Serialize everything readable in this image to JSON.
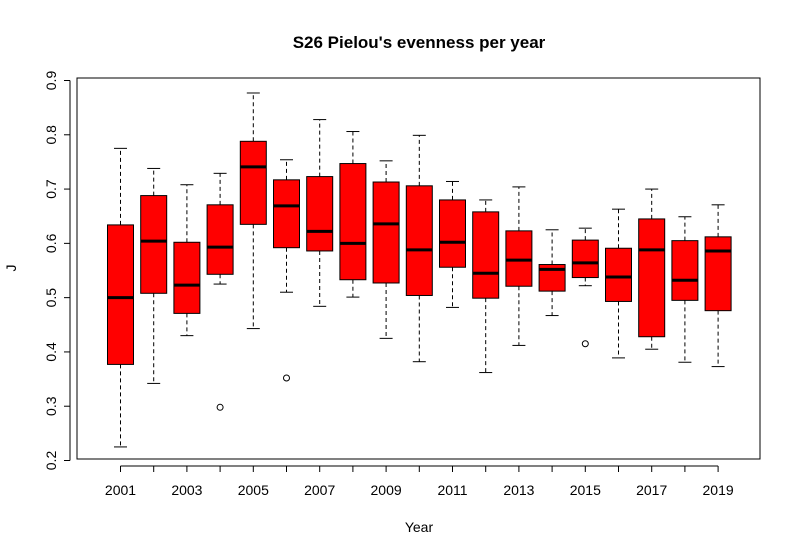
{
  "chart_data": {
    "type": "boxplot",
    "title": "S26 Pielou's evenness per year",
    "xlabel": "Year",
    "ylabel": "J",
    "ylim": [
      0.2,
      0.9
    ],
    "yticks": [
      0.2,
      0.3,
      0.4,
      0.5,
      0.6,
      0.7,
      0.8,
      0.9
    ],
    "xtick_labels": [
      "2001",
      "2003",
      "2005",
      "2007",
      "2009",
      "2011",
      "2013",
      "2015",
      "2017",
      "2019"
    ],
    "box_color": "#ff0000",
    "categories": [
      "2001",
      "2002",
      "2003",
      "2004",
      "2005",
      "2006",
      "2007",
      "2008",
      "2009",
      "2010",
      "2011",
      "2012",
      "2013",
      "2014",
      "2015",
      "2016",
      "2017",
      "2018",
      "2019"
    ],
    "boxes": [
      {
        "year": "2001",
        "whisker_low": 0.225,
        "q1": 0.377,
        "median": 0.5,
        "q3": 0.634,
        "whisker_high": 0.775,
        "outliers": []
      },
      {
        "year": "2002",
        "whisker_low": 0.342,
        "q1": 0.508,
        "median": 0.604,
        "q3": 0.688,
        "whisker_high": 0.738,
        "outliers": []
      },
      {
        "year": "2003",
        "whisker_low": 0.43,
        "q1": 0.471,
        "median": 0.523,
        "q3": 0.602,
        "whisker_high": 0.708,
        "outliers": []
      },
      {
        "year": "2004",
        "whisker_low": 0.525,
        "q1": 0.543,
        "median": 0.593,
        "q3": 0.671,
        "whisker_high": 0.729,
        "outliers": [
          0.298
        ]
      },
      {
        "year": "2005",
        "whisker_low": 0.443,
        "q1": 0.635,
        "median": 0.741,
        "q3": 0.788,
        "whisker_high": 0.877,
        "outliers": []
      },
      {
        "year": "2006",
        "whisker_low": 0.51,
        "q1": 0.592,
        "median": 0.669,
        "q3": 0.717,
        "whisker_high": 0.754,
        "outliers": [
          0.352
        ]
      },
      {
        "year": "2007",
        "whisker_low": 0.484,
        "q1": 0.586,
        "median": 0.622,
        "q3": 0.723,
        "whisker_high": 0.828,
        "outliers": []
      },
      {
        "year": "2008",
        "whisker_low": 0.501,
        "q1": 0.533,
        "median": 0.6,
        "q3": 0.747,
        "whisker_high": 0.806,
        "outliers": []
      },
      {
        "year": "2009",
        "whisker_low": 0.425,
        "q1": 0.527,
        "median": 0.636,
        "q3": 0.713,
        "whisker_high": 0.752,
        "outliers": []
      },
      {
        "year": "2010",
        "whisker_low": 0.382,
        "q1": 0.504,
        "median": 0.588,
        "q3": 0.706,
        "whisker_high": 0.799,
        "outliers": []
      },
      {
        "year": "2011",
        "whisker_low": 0.482,
        "q1": 0.556,
        "median": 0.602,
        "q3": 0.68,
        "whisker_high": 0.714,
        "outliers": []
      },
      {
        "year": "2012",
        "whisker_low": 0.362,
        "q1": 0.499,
        "median": 0.545,
        "q3": 0.658,
        "whisker_high": 0.68,
        "outliers": []
      },
      {
        "year": "2013",
        "whisker_low": 0.412,
        "q1": 0.521,
        "median": 0.569,
        "q3": 0.623,
        "whisker_high": 0.704,
        "outliers": []
      },
      {
        "year": "2014",
        "whisker_low": 0.467,
        "q1": 0.512,
        "median": 0.552,
        "q3": 0.561,
        "whisker_high": 0.625,
        "outliers": []
      },
      {
        "year": "2015",
        "whisker_low": 0.522,
        "q1": 0.537,
        "median": 0.564,
        "q3": 0.606,
        "whisker_high": 0.628,
        "outliers": [
          0.415
        ]
      },
      {
        "year": "2016",
        "whisker_low": 0.389,
        "q1": 0.493,
        "median": 0.538,
        "q3": 0.591,
        "whisker_high": 0.663,
        "outliers": []
      },
      {
        "year": "2017",
        "whisker_low": 0.405,
        "q1": 0.428,
        "median": 0.588,
        "q3": 0.645,
        "whisker_high": 0.7,
        "outliers": []
      },
      {
        "year": "2018",
        "whisker_low": 0.381,
        "q1": 0.495,
        "median": 0.532,
        "q3": 0.605,
        "whisker_high": 0.649,
        "outliers": []
      },
      {
        "year": "2019",
        "whisker_low": 0.373,
        "q1": 0.476,
        "median": 0.586,
        "q3": 0.612,
        "whisker_high": 0.671,
        "outliers": []
      }
    ]
  }
}
